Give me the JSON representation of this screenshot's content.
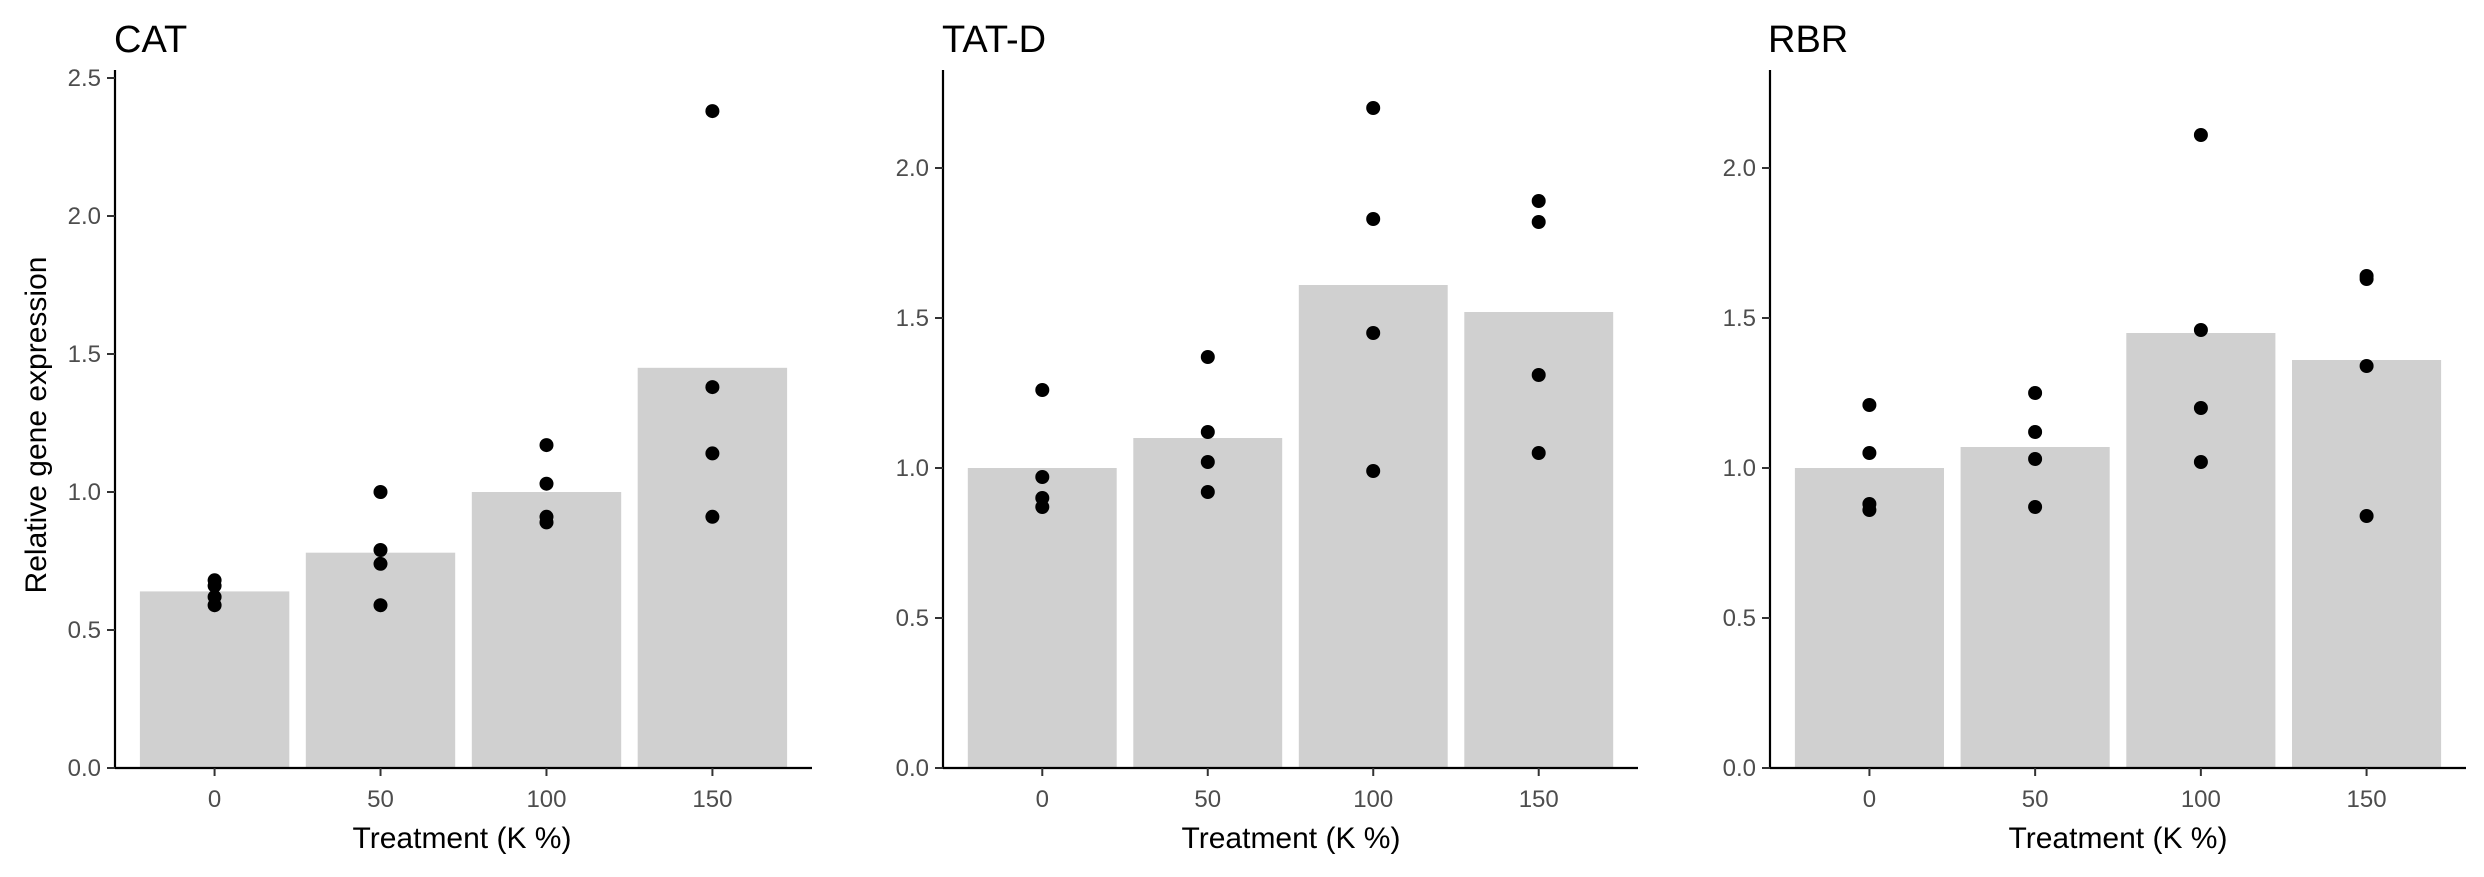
{
  "chart_data": [
    {
      "type": "bar",
      "title": "CAT",
      "xlabel": "Treatment (K %)",
      "ylabel": "Relative gene expression",
      "categories": [
        "0",
        "50",
        "100",
        "150"
      ],
      "values": [
        0.64,
        0.78,
        1.0,
        1.45
      ],
      "points": [
        [
          0.68,
          0.66,
          0.62,
          0.59
        ],
        [
          1.0,
          0.79,
          0.74,
          0.59
        ],
        [
          1.17,
          1.03,
          0.91,
          0.89
        ],
        [
          2.38,
          1.38,
          1.14,
          0.91
        ]
      ],
      "ylim": [
        0,
        2.5
      ],
      "yticks": [
        0.0,
        0.5,
        1.0,
        1.5,
        2.0,
        2.5
      ],
      "ytick_labels": [
        "0.0",
        "0.5",
        "1.0",
        "1.5",
        "2.0",
        "2.5"
      ],
      "grid": false
    },
    {
      "type": "bar",
      "title": "TAT-D",
      "xlabel": "Treatment (K %)",
      "ylabel": "",
      "categories": [
        "0",
        "50",
        "100",
        "150"
      ],
      "values": [
        1.0,
        1.1,
        1.61,
        1.52
      ],
      "points": [
        [
          1.26,
          0.97,
          0.9,
          0.87
        ],
        [
          1.37,
          1.12,
          1.02,
          0.92
        ],
        [
          2.2,
          1.83,
          1.45,
          0.99
        ],
        [
          1.89,
          1.82,
          1.31,
          1.05
        ]
      ],
      "ylim": [
        0,
        2.3
      ],
      "yticks": [
        0.0,
        0.5,
        1.0,
        1.5,
        2.0
      ],
      "ytick_labels": [
        "0.0",
        "0.5",
        "1.0",
        "1.5",
        "2.0"
      ],
      "grid": false
    },
    {
      "type": "bar",
      "title": "RBR",
      "xlabel": "Treatment (K %)",
      "ylabel": "",
      "categories": [
        "0",
        "50",
        "100",
        "150"
      ],
      "values": [
        1.0,
        1.07,
        1.45,
        1.36
      ],
      "points": [
        [
          1.21,
          1.05,
          0.88,
          0.86
        ],
        [
          1.25,
          1.12,
          1.03,
          0.87
        ],
        [
          2.11,
          1.46,
          1.2,
          1.02
        ],
        [
          1.64,
          1.63,
          1.34,
          0.84
        ]
      ],
      "ylim": [
        0,
        2.3
      ],
      "yticks": [
        0.0,
        0.5,
        1.0,
        1.5,
        2.0
      ],
      "ytick_labels": [
        "0.0",
        "0.5",
        "1.0",
        "1.5",
        "2.0"
      ],
      "grid": false
    }
  ],
  "colors": {
    "bar_fill": "#d0d0d0",
    "point_fill": "#000000",
    "axis": "#000000",
    "tick_label": "#4d4d4d"
  }
}
